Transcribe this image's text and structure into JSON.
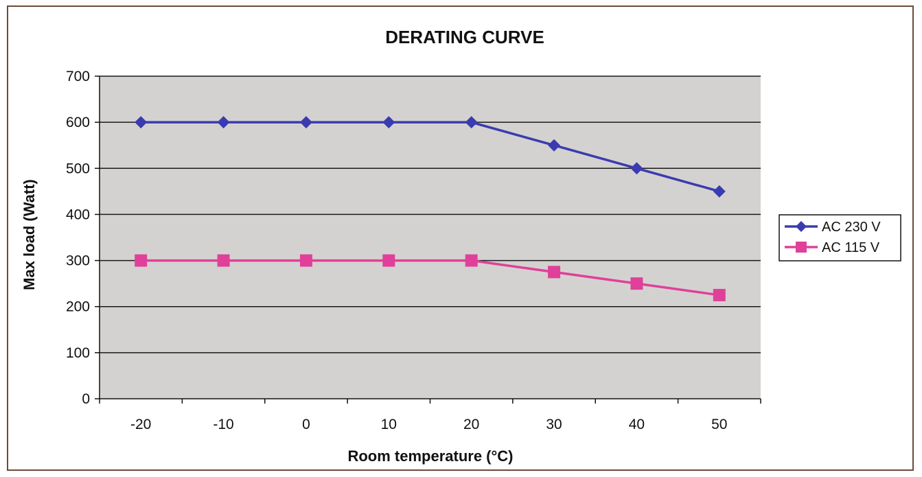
{
  "chart_data": {
    "type": "line",
    "title": "DERATING CURVE",
    "xlabel": "Room temperature (°C)",
    "ylabel": "Max load (Watt)",
    "categories": [
      "-20",
      "-10",
      "0",
      "10",
      "20",
      "30",
      "40",
      "50"
    ],
    "ylim": [
      0,
      700
    ],
    "yticks": [
      "0",
      "100",
      "200",
      "300",
      "400",
      "500",
      "600",
      "700"
    ],
    "grid": true,
    "legend_position": "right",
    "series": [
      {
        "name": "AC 230 V",
        "marker": "diamond",
        "color": "#3b3bb0",
        "values": [
          600,
          600,
          600,
          600,
          600,
          550,
          500,
          450
        ]
      },
      {
        "name": "AC 115 V",
        "marker": "square",
        "color": "#e0409a",
        "values": [
          300,
          300,
          300,
          300,
          300,
          275,
          250,
          225
        ]
      }
    ],
    "colors": {
      "plot_background": "#d4d2d0",
      "gridline": "#1a1a1a",
      "frame": "#6b4a3a"
    }
  }
}
